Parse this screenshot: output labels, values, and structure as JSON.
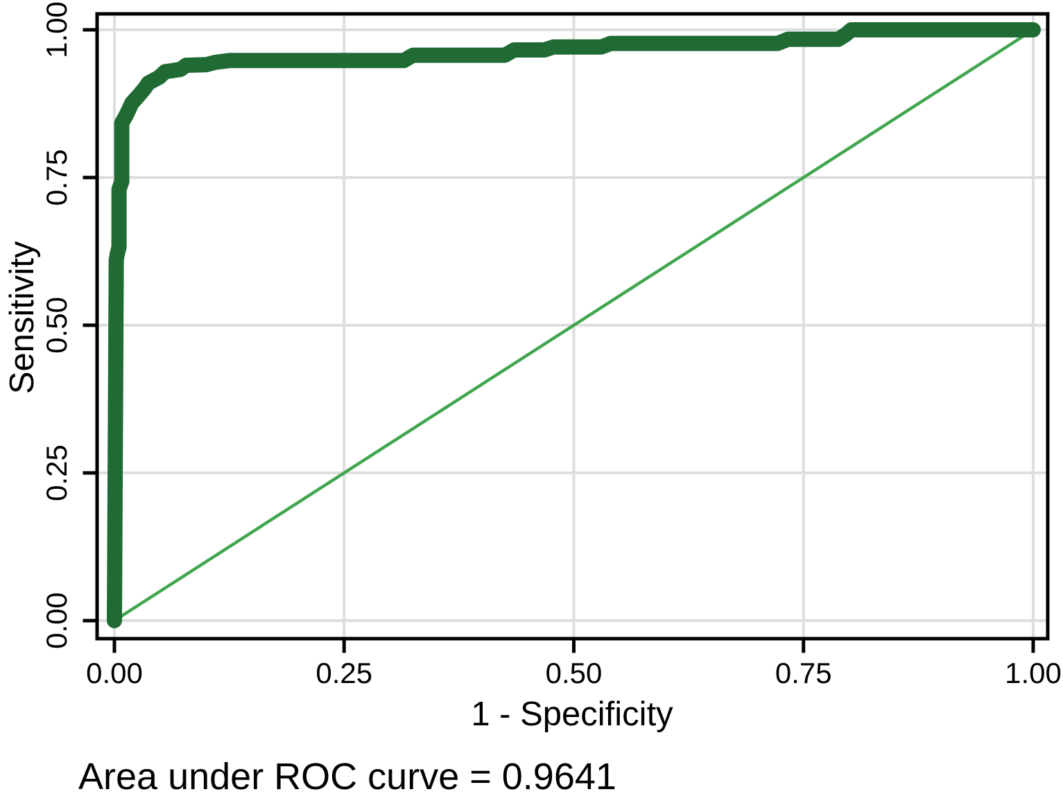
{
  "chart_data": {
    "type": "line",
    "title": "",
    "xlabel": "1 - Specificity",
    "ylabel": "Sensitivity",
    "caption": "Area under ROC curve = 0.9641",
    "auc": 0.9641,
    "xlim": [
      0,
      1
    ],
    "ylim": [
      0,
      1
    ],
    "x_tick_labels": [
      "0.00",
      "0.25",
      "0.50",
      "0.75",
      "1.00"
    ],
    "x_tick_values": [
      0,
      0.25,
      0.5,
      0.75,
      1
    ],
    "y_tick_labels": [
      "0.00",
      "0.25",
      "0.50",
      "0.75",
      "1.00"
    ],
    "y_tick_values": [
      0,
      0.25,
      0.5,
      0.75,
      1
    ],
    "grid": true,
    "legend_position": "none",
    "series": [
      {
        "name": "ROC curve",
        "style": "thick-step-with-markers",
        "color": "#1f6b33",
        "points": [
          [
            0.0,
            0.0
          ],
          [
            0.002,
            0.61
          ],
          [
            0.003,
            0.62
          ],
          [
            0.005,
            0.632
          ],
          [
            0.005,
            0.73
          ],
          [
            0.008,
            0.743
          ],
          [
            0.008,
            0.842
          ],
          [
            0.013,
            0.856
          ],
          [
            0.019,
            0.876
          ],
          [
            0.026,
            0.888
          ],
          [
            0.032,
            0.899
          ],
          [
            0.037,
            0.91
          ],
          [
            0.049,
            0.92
          ],
          [
            0.055,
            0.929
          ],
          [
            0.072,
            0.933
          ],
          [
            0.078,
            0.94
          ],
          [
            0.1,
            0.941
          ],
          [
            0.11,
            0.945
          ],
          [
            0.125,
            0.948
          ],
          [
            0.315,
            0.948
          ],
          [
            0.325,
            0.957
          ],
          [
            0.425,
            0.957
          ],
          [
            0.435,
            0.966
          ],
          [
            0.468,
            0.966
          ],
          [
            0.478,
            0.971
          ],
          [
            0.53,
            0.971
          ],
          [
            0.54,
            0.977
          ],
          [
            0.722,
            0.977
          ],
          [
            0.733,
            0.984
          ],
          [
            0.788,
            0.984
          ],
          [
            0.796,
            0.992
          ],
          [
            0.802,
            1.0
          ],
          [
            1.0,
            1.0
          ]
        ]
      },
      {
        "name": "Reference line",
        "style": "thin-diagonal",
        "color": "#41a64f",
        "points": [
          [
            0,
            0
          ],
          [
            1,
            1
          ]
        ]
      }
    ]
  },
  "colors": {
    "background": "#ffffff",
    "plot_border": "#000000",
    "grid": "#dcdfdd",
    "tick": "#000000",
    "text": "#000000",
    "roc_curve": "#1f6b33",
    "reference_line": "#41a64f"
  }
}
